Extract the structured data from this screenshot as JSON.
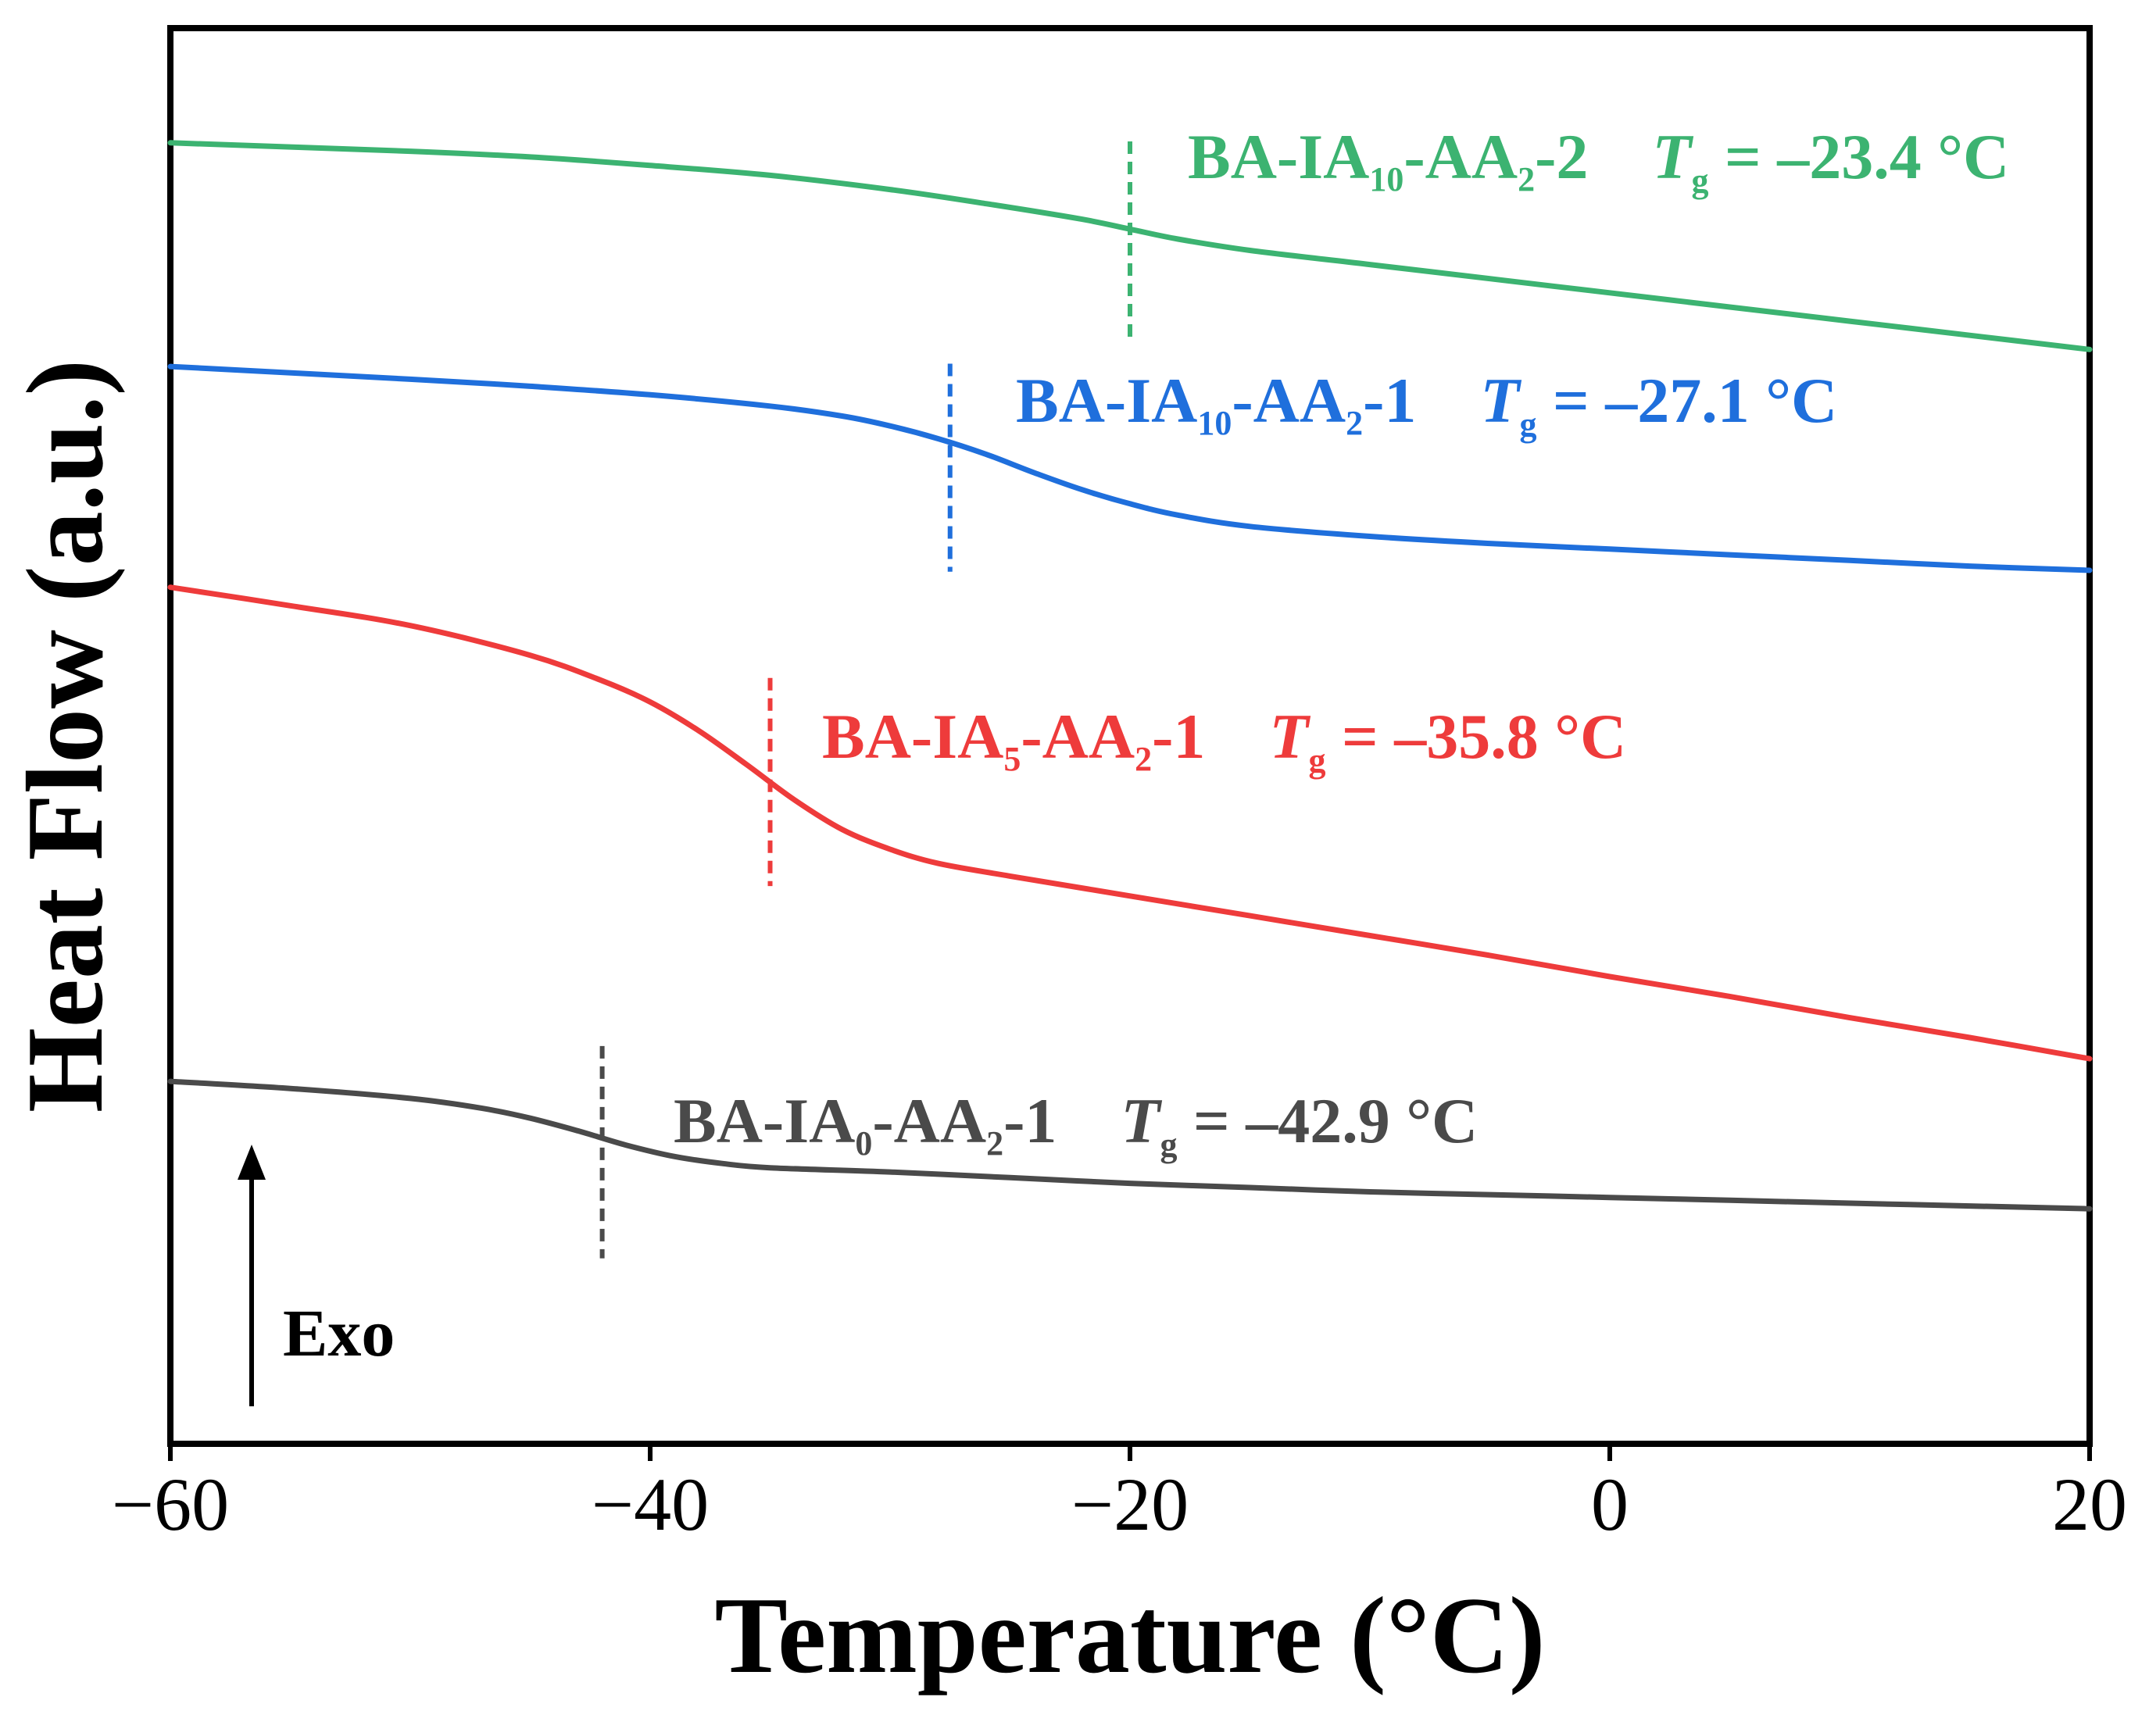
{
  "chart_data": {
    "type": "line",
    "xlabel": "Temperature (°C)",
    "ylabel": "Heat Flow (a.u.)",
    "xlim": [
      -60,
      20
    ],
    "ylim": [
      0,
      100
    ],
    "xticks": [
      -60,
      -40,
      -20,
      0,
      20
    ],
    "xtick_labels": [
      "−60",
      "−40",
      "−20",
      "0",
      "20"
    ],
    "exo_label": "Exo",
    "series": [
      {
        "name": "BA-IA10-AA2-2",
        "color": "#3cb371",
        "tg": -23.4,
        "tg_text": "= –23.4 °C",
        "label_parts": [
          "BA-IA",
          "10",
          "-AA",
          "2",
          "-2"
        ],
        "marker_x": -20,
        "marker_range": [
          78,
          92
        ],
        "x": [
          -60,
          -50,
          -45,
          -40,
          -35,
          -30,
          -26,
          -22,
          -20,
          -18,
          -15,
          -10,
          -5,
          0,
          5,
          10,
          15,
          20
        ],
        "y": [
          91.9,
          91.3,
          90.9,
          90.3,
          89.6,
          88.6,
          87.6,
          86.5,
          85.8,
          85.1,
          84.3,
          83.3,
          82.3,
          81.3,
          80.3,
          79.3,
          78.3,
          79.6
        ]
      },
      {
        "name": "BA-IA10-AA2-1",
        "color": "#1f6fdc",
        "tg": -27.1,
        "tg_text": "= –27.1 °C",
        "label_parts": [
          "BA-IA",
          "10",
          "-AA",
          "2",
          "-1"
        ],
        "marker_x": -27.5,
        "marker_range": [
          61.6,
          76.3
        ],
        "x": [
          -60,
          -50,
          -45,
          -40,
          -35,
          -32,
          -30,
          -28,
          -26,
          -24,
          -22,
          -20,
          -18,
          -15,
          -10,
          -5,
          0,
          5,
          10,
          15,
          20
        ],
        "y": [
          76.1,
          75.2,
          74.7,
          74.1,
          73.3,
          72.6,
          71.9,
          71.0,
          69.9,
          68.6,
          67.4,
          66.4,
          65.6,
          64.8,
          64.1,
          63.6,
          63.2,
          62.8,
          62.4,
          62.0,
          61.7
        ]
      },
      {
        "name": "BA-IA5-AA2-1",
        "color": "#ee3b3b",
        "tg": -35.8,
        "tg_text": "= –35.8 °C",
        "label_parts": [
          "BA-IA",
          "5",
          "-AA",
          "2",
          "-1"
        ],
        "marker_x": -35,
        "marker_range": [
          39.4,
          54.1
        ],
        "x": [
          -60,
          -55,
          -50,
          -45,
          -42,
          -40,
          -38,
          -36,
          -34,
          -32,
          -30,
          -28,
          -25,
          -20,
          -15,
          -10,
          -5,
          0,
          5,
          10,
          15,
          20
        ],
        "y": [
          60.5,
          59.2,
          57.8,
          55.7,
          53.9,
          52.4,
          50.4,
          48.0,
          45.5,
          43.4,
          42.0,
          41.0,
          40.1,
          38.7,
          37.3,
          35.9,
          34.5,
          33.0,
          31.6,
          30.1,
          28.7,
          27.2
        ]
      },
      {
        "name": "BA-IA0-AA2-1",
        "color": "#4a4a4a",
        "tg": -42.9,
        "tg_text": "= –42.9 °C",
        "label_parts": [
          "BA-IA",
          "0",
          "-AA",
          "2",
          "-1"
        ],
        "marker_x": -42,
        "marker_range": [
          13.1,
          28.1
        ],
        "x": [
          -60,
          -55,
          -50,
          -47,
          -45,
          -43,
          -41,
          -39,
          -37,
          -35,
          -30,
          -25,
          -20,
          -15,
          -10,
          -5,
          0,
          5,
          10,
          15,
          20
        ],
        "y": [
          25.6,
          25.1,
          24.4,
          23.7,
          23.0,
          22.1,
          21.1,
          20.3,
          19.8,
          19.5,
          19.2,
          18.8,
          18.4,
          18.1,
          17.8,
          17.6,
          17.4,
          17.2,
          17.0,
          16.8,
          16.6
        ]
      }
    ]
  },
  "tg_symbol": "T",
  "tg_subscript": "g"
}
